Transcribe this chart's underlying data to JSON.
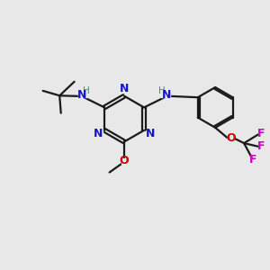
{
  "background_color": "#e8e8e8",
  "line_color": "#1a1a1a",
  "N_color": "#1414d4",
  "H_color": "#4a8a8a",
  "O_color": "#cc0000",
  "F_color": "#cc00cc",
  "bond_width": 1.6,
  "figsize": [
    3.0,
    3.0
  ],
  "dpi": 100,
  "xlim": [
    0,
    10
  ],
  "ylim": [
    0,
    10
  ]
}
